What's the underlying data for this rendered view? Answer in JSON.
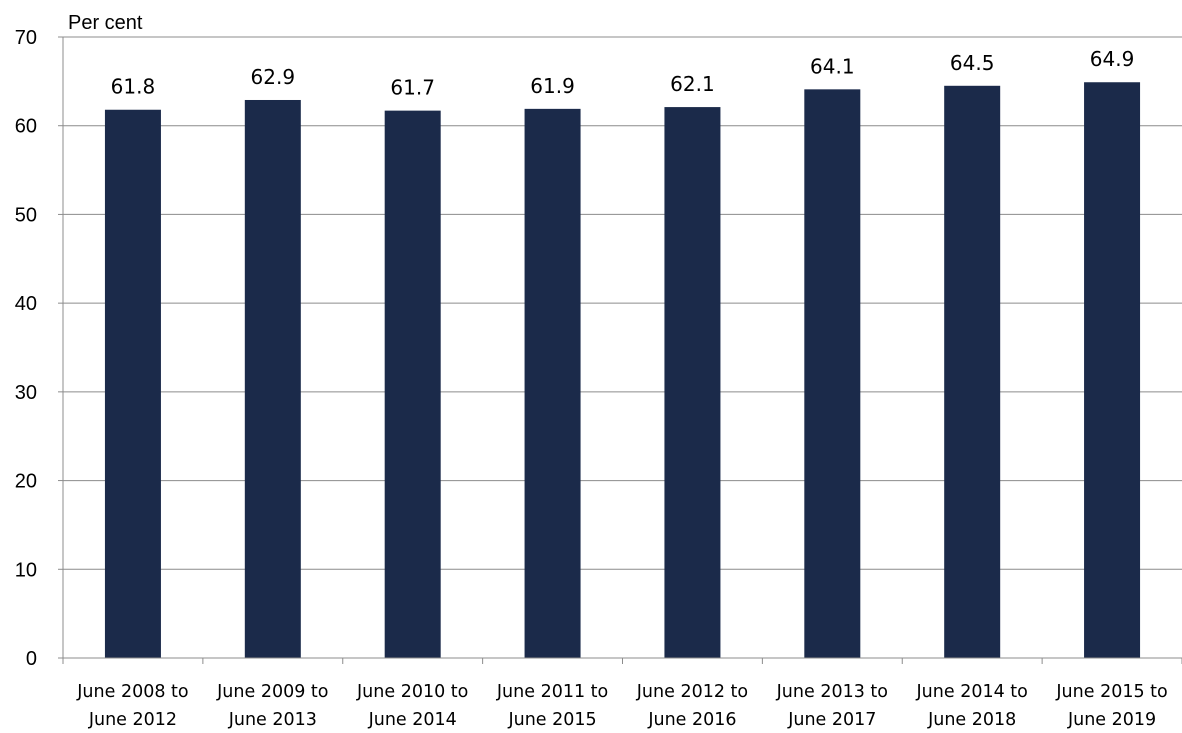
{
  "chart_data": {
    "type": "bar",
    "ylabel": "Per cent",
    "ylim": [
      0,
      70
    ],
    "yticks": [
      0,
      10,
      20,
      30,
      40,
      50,
      60,
      70
    ],
    "grid": true,
    "categories": [
      [
        "June 2008 to",
        "June 2012"
      ],
      [
        "June 2009 to",
        "June 2013"
      ],
      [
        "June 2010 to",
        "June 2014"
      ],
      [
        "June 2011 to",
        "June 2015"
      ],
      [
        "June 2012 to",
        "June 2016"
      ],
      [
        "June 2013 to",
        "June 2017"
      ],
      [
        "June 2014 to",
        "June 2018"
      ],
      [
        "June 2015 to",
        "June 2019"
      ]
    ],
    "values": [
      61.8,
      62.9,
      61.7,
      61.9,
      62.1,
      64.1,
      64.5,
      64.9
    ],
    "data_labels": [
      "61.8",
      "62.9",
      "61.7",
      "61.9",
      "62.1",
      "64.1",
      "64.5",
      "64.9"
    ],
    "bar_color": "#1b2a4a",
    "grid_color": "#8c8c8c"
  }
}
